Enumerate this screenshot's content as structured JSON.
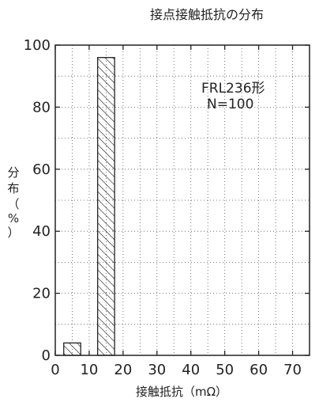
{
  "chart_data": {
    "type": "bar",
    "title": "接点接触抵抗の分布",
    "xlabel": "接触抵抗（mΩ）",
    "ylabel_chars": [
      "分",
      "布",
      "（",
      "%",
      "）"
    ],
    "xlim": [
      0,
      75
    ],
    "ylim": [
      0,
      100
    ],
    "xticks": [
      0,
      10,
      20,
      30,
      40,
      50,
      60,
      70
    ],
    "yticks": [
      0,
      20,
      40,
      60,
      80,
      100
    ],
    "grid": "dotted",
    "bar_fill": "diagonal-hatch",
    "bins": [
      {
        "x0": 2.5,
        "x1": 7.5,
        "value": 4
      },
      {
        "x0": 12.5,
        "x1": 17.5,
        "value": 96
      }
    ],
    "annotations": [
      "FRL236形",
      "N=100"
    ],
    "colors": {
      "axis": "#222222",
      "grid": "#555555",
      "bar": "#222222"
    }
  }
}
